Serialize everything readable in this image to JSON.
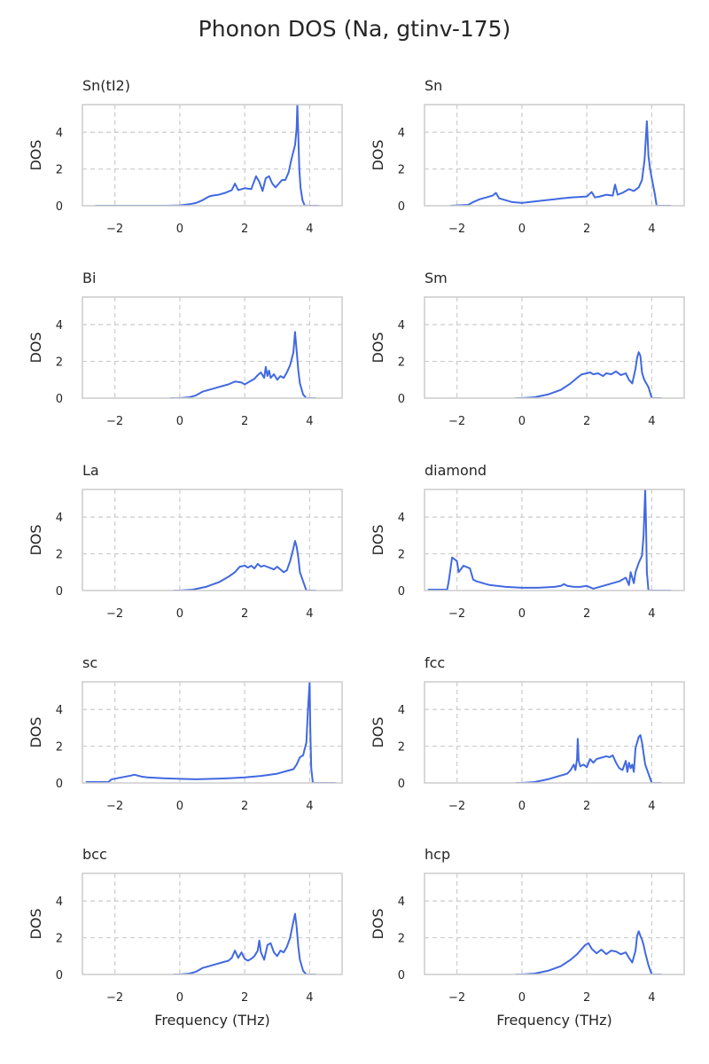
{
  "title": "Phonon DOS (Na, gtinv-175)",
  "chart_data": {
    "type": "line",
    "xlabel": "Frequency (THz)",
    "ylabel": "DOS",
    "xlim": [
      -3,
      5
    ],
    "ylim": [
      0,
      5.5
    ],
    "xticks": [
      "−2",
      "0",
      "2",
      "4"
    ],
    "xtick_values": [
      -2,
      0,
      2,
      4
    ],
    "yticks": [
      "0",
      "2",
      "4"
    ],
    "ytick_values": [
      0,
      2,
      4
    ],
    "grid": true,
    "line_color": "#4169e1",
    "panels": [
      {
        "title": "Sn(tI2)",
        "x": [
          -2.6,
          -0.4,
          0,
          0.3,
          0.5,
          0.7,
          0.9,
          1.0,
          1.2,
          1.4,
          1.6,
          1.7,
          1.8,
          2.0,
          2.2,
          2.35,
          2.45,
          2.55,
          2.65,
          2.75,
          2.85,
          2.95,
          3.05,
          3.15,
          3.25,
          3.35,
          3.45,
          3.55,
          3.6,
          3.62,
          3.65,
          3.68,
          3.72,
          3.78,
          3.85,
          4.3
        ],
        "y": [
          0,
          0,
          0.02,
          0.08,
          0.15,
          0.3,
          0.5,
          0.55,
          0.6,
          0.7,
          0.85,
          1.2,
          0.85,
          0.95,
          0.9,
          1.6,
          1.3,
          0.8,
          1.5,
          1.6,
          1.2,
          1.0,
          1.2,
          1.4,
          1.4,
          1.8,
          2.6,
          3.3,
          4.2,
          5.5,
          3.8,
          2.0,
          1.0,
          0.3,
          0,
          0
        ]
      },
      {
        "title": "Sn",
        "x": [
          -2.2,
          -1.65,
          -1.5,
          -1.3,
          -1.1,
          -0.9,
          -0.8,
          -0.7,
          -0.5,
          -0.3,
          0,
          0.5,
          1.0,
          1.5,
          2.0,
          2.15,
          2.25,
          2.4,
          2.6,
          2.8,
          2.87,
          2.95,
          3.1,
          3.3,
          3.45,
          3.6,
          3.7,
          3.78,
          3.85,
          3.9,
          3.95,
          4.0,
          4.1,
          4.15,
          4.6
        ],
        "y": [
          0,
          0.05,
          0.2,
          0.35,
          0.45,
          0.55,
          0.7,
          0.4,
          0.3,
          0.2,
          0.15,
          0.25,
          0.35,
          0.45,
          0.5,
          0.75,
          0.45,
          0.5,
          0.6,
          0.55,
          1.15,
          0.6,
          0.7,
          0.9,
          0.8,
          1.0,
          1.4,
          2.5,
          4.6,
          2.7,
          2.0,
          1.5,
          0.6,
          0,
          0
        ]
      },
      {
        "title": "Bi",
        "x": [
          -0.3,
          0,
          0.3,
          0.5,
          0.7,
          0.9,
          1.1,
          1.3,
          1.5,
          1.7,
          1.9,
          2.0,
          2.1,
          2.2,
          2.3,
          2.4,
          2.5,
          2.6,
          2.65,
          2.7,
          2.75,
          2.8,
          2.9,
          3.0,
          3.1,
          3.2,
          3.3,
          3.4,
          3.5,
          3.55,
          3.6,
          3.65,
          3.7,
          3.8,
          3.9,
          4.2
        ],
        "y": [
          0,
          0,
          0.05,
          0.15,
          0.35,
          0.45,
          0.55,
          0.65,
          0.75,
          0.9,
          0.85,
          0.75,
          0.85,
          0.95,
          1.05,
          1.25,
          1.4,
          1.1,
          1.7,
          1.2,
          1.5,
          1.1,
          1.3,
          1.0,
          1.2,
          1.1,
          1.4,
          1.8,
          2.5,
          3.6,
          2.6,
          1.5,
          0.8,
          0.2,
          0,
          0
        ]
      },
      {
        "title": "Sm",
        "x": [
          -0.2,
          0,
          0.4,
          0.8,
          1.2,
          1.5,
          1.7,
          1.85,
          2.0,
          2.1,
          2.2,
          2.35,
          2.5,
          2.6,
          2.75,
          2.9,
          3.05,
          3.2,
          3.3,
          3.4,
          3.5,
          3.55,
          3.6,
          3.65,
          3.7,
          3.75,
          3.8,
          3.9,
          4.0,
          4.3
        ],
        "y": [
          0,
          0,
          0.05,
          0.2,
          0.45,
          0.8,
          1.1,
          1.3,
          1.35,
          1.4,
          1.3,
          1.35,
          1.2,
          1.35,
          1.3,
          1.45,
          1.25,
          1.35,
          1.0,
          0.8,
          1.6,
          2.2,
          2.5,
          2.3,
          1.4,
          1.1,
          0.9,
          0.6,
          0,
          0
        ]
      },
      {
        "title": "La",
        "x": [
          -0.2,
          0,
          0.4,
          0.8,
          1.2,
          1.5,
          1.7,
          1.85,
          2.0,
          2.1,
          2.2,
          2.3,
          2.4,
          2.5,
          2.6,
          2.75,
          2.9,
          3.0,
          3.1,
          3.2,
          3.3,
          3.4,
          3.5,
          3.55,
          3.6,
          3.65,
          3.7,
          3.8,
          3.9,
          4.2
        ],
        "y": [
          0,
          0,
          0.05,
          0.2,
          0.45,
          0.75,
          1.0,
          1.3,
          1.35,
          1.25,
          1.35,
          1.2,
          1.45,
          1.3,
          1.35,
          1.25,
          1.15,
          1.3,
          1.15,
          1.0,
          1.1,
          1.6,
          2.3,
          2.7,
          2.4,
          1.8,
          1.0,
          0.5,
          0,
          0
        ]
      },
      {
        "title": "diamond",
        "x": [
          -2.9,
          -2.3,
          -2.25,
          -2.15,
          -2.0,
          -1.95,
          -1.8,
          -1.6,
          -1.5,
          -1.4,
          -1.2,
          -1.0,
          -0.5,
          0,
          0.5,
          1.0,
          1.2,
          1.3,
          1.4,
          1.6,
          1.8,
          2.0,
          2.2,
          2.5,
          2.8,
          3.0,
          3.2,
          3.3,
          3.35,
          3.4,
          3.45,
          3.5,
          3.6,
          3.7,
          3.75,
          3.78,
          3.8,
          3.82,
          3.85,
          3.9,
          4.6
        ],
        "y": [
          0.05,
          0.05,
          0.55,
          1.8,
          1.6,
          1.0,
          1.35,
          1.2,
          0.6,
          0.5,
          0.4,
          0.3,
          0.2,
          0.15,
          0.15,
          0.2,
          0.25,
          0.35,
          0.25,
          0.2,
          0.2,
          0.25,
          0.1,
          0.25,
          0.4,
          0.5,
          0.7,
          0.3,
          1.0,
          0.7,
          0.4,
          1.0,
          1.5,
          1.9,
          3.0,
          4.5,
          5.5,
          4.0,
          1.0,
          0,
          0
        ]
      },
      {
        "title": "sc",
        "x": [
          -2.9,
          -2.2,
          -2.1,
          -1.8,
          -1.5,
          -1.4,
          -1.2,
          -1.0,
          -0.5,
          0,
          0.5,
          1.0,
          1.5,
          2.0,
          2.5,
          3.0,
          3.3,
          3.5,
          3.6,
          3.7,
          3.8,
          3.9,
          3.95,
          4.0,
          4.02,
          4.05,
          4.1,
          4.8
        ],
        "y": [
          0.05,
          0.05,
          0.2,
          0.3,
          0.4,
          0.45,
          0.35,
          0.3,
          0.25,
          0.22,
          0.2,
          0.22,
          0.25,
          0.3,
          0.38,
          0.5,
          0.65,
          0.75,
          1.0,
          1.4,
          1.5,
          2.2,
          4.0,
          5.5,
          3.0,
          0.8,
          0,
          0
        ]
      },
      {
        "title": "fcc",
        "x": [
          -0.2,
          0,
          0.4,
          0.8,
          1.1,
          1.4,
          1.5,
          1.6,
          1.65,
          1.7,
          1.72,
          1.75,
          1.8,
          1.9,
          2.0,
          2.1,
          2.2,
          2.3,
          2.4,
          2.5,
          2.6,
          2.7,
          2.8,
          2.9,
          3.0,
          3.1,
          3.2,
          3.25,
          3.3,
          3.35,
          3.4,
          3.45,
          3.5,
          3.6,
          3.65,
          3.7,
          3.75,
          3.8,
          3.9,
          4.0,
          4.3
        ],
        "y": [
          0,
          0,
          0.05,
          0.2,
          0.35,
          0.5,
          0.7,
          1.0,
          0.7,
          1.3,
          2.4,
          1.2,
          0.9,
          1.0,
          0.85,
          1.3,
          1.1,
          1.3,
          1.35,
          1.4,
          1.45,
          1.4,
          1.5,
          1.1,
          0.8,
          0.7,
          1.2,
          0.6,
          1.1,
          0.8,
          1.0,
          0.6,
          1.9,
          2.5,
          2.6,
          2.2,
          1.6,
          1.0,
          0.5,
          0,
          0
        ]
      },
      {
        "title": "bcc",
        "x": [
          -0.2,
          0,
          0.3,
          0.5,
          0.7,
          0.9,
          1.1,
          1.3,
          1.5,
          1.6,
          1.7,
          1.8,
          1.9,
          2.0,
          2.1,
          2.2,
          2.3,
          2.4,
          2.45,
          2.5,
          2.6,
          2.7,
          2.8,
          2.9,
          3.0,
          3.1,
          3.2,
          3.3,
          3.4,
          3.5,
          3.55,
          3.6,
          3.65,
          3.7,
          3.8,
          3.9,
          4.2
        ],
        "y": [
          0,
          0,
          0.05,
          0.15,
          0.35,
          0.45,
          0.55,
          0.65,
          0.75,
          0.9,
          1.3,
          0.9,
          1.2,
          0.85,
          0.75,
          0.85,
          1.0,
          1.3,
          1.85,
          1.2,
          0.8,
          1.6,
          1.7,
          1.2,
          1.0,
          1.3,
          1.2,
          1.5,
          2.0,
          2.9,
          3.3,
          2.6,
          1.5,
          0.8,
          0.2,
          0,
          0
        ]
      },
      {
        "title": "hcp",
        "x": [
          -0.2,
          0,
          0.4,
          0.8,
          1.2,
          1.5,
          1.7,
          1.85,
          1.95,
          2.05,
          2.15,
          2.3,
          2.45,
          2.6,
          2.75,
          2.9,
          3.05,
          3.2,
          3.3,
          3.4,
          3.5,
          3.55,
          3.6,
          3.65,
          3.7,
          3.75,
          3.8,
          3.9,
          4.0,
          4.3
        ],
        "y": [
          0,
          0,
          0.05,
          0.2,
          0.45,
          0.8,
          1.1,
          1.4,
          1.6,
          1.7,
          1.4,
          1.15,
          1.35,
          1.1,
          1.3,
          1.25,
          1.1,
          1.2,
          0.9,
          0.65,
          1.3,
          2.1,
          2.35,
          2.1,
          1.9,
          1.6,
          1.2,
          0.5,
          0,
          0
        ]
      }
    ]
  }
}
